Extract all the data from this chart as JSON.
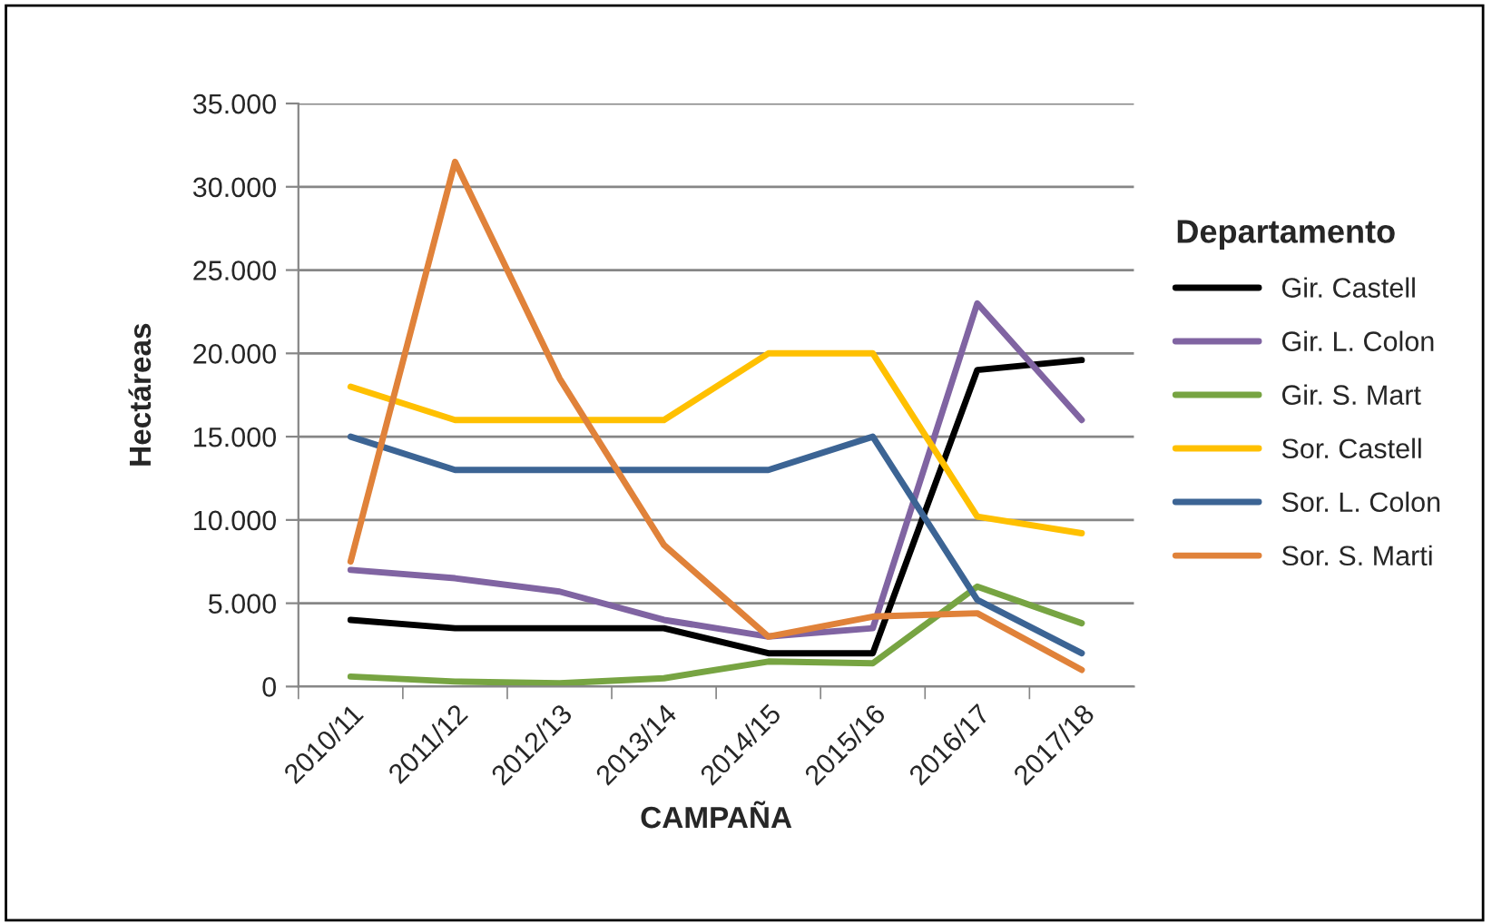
{
  "chart_data": {
    "type": "line",
    "xlabel": "CAMPAÑA",
    "ylabel": "Hectáreas",
    "legend_title": "Departamento",
    "categories": [
      "2010/11",
      "2011/12",
      "2012/13",
      "2013/14",
      "2014/15",
      "2015/16",
      "2016/17",
      "2017/18"
    ],
    "series": [
      {
        "name": "Gir. Castell",
        "color": "#000000",
        "values": [
          4000,
          3500,
          3500,
          3500,
          2000,
          2000,
          19000,
          19600
        ]
      },
      {
        "name": "Gir. L. Colon",
        "color": "#8064a2",
        "values": [
          7000,
          6500,
          5700,
          4000,
          3000,
          3500,
          23000,
          16000
        ]
      },
      {
        "name": "Gir. S. Mart",
        "color": "#77a442",
        "values": [
          600,
          300,
          200,
          500,
          1500,
          1400,
          6000,
          3800
        ]
      },
      {
        "name": "Sor. Castell",
        "color": "#ffc000",
        "values": [
          18000,
          16000,
          16000,
          16000,
          20000,
          20000,
          10200,
          9200
        ]
      },
      {
        "name": "Sor. L. Colon",
        "color": "#3c6494",
        "values": [
          15000,
          13000,
          13000,
          13000,
          13000,
          15000,
          5200,
          2000
        ]
      },
      {
        "name": "Sor. S. Marti",
        "color": "#e0823a",
        "values": [
          7500,
          31500,
          18500,
          8500,
          3000,
          4200,
          4400,
          1000
        ]
      }
    ],
    "ylim": [
      0,
      35000
    ],
    "yticks": [
      {
        "value": 0,
        "label": "0"
      },
      {
        "value": 5000,
        "label": "5.000"
      },
      {
        "value": 10000,
        "label": "10.000"
      },
      {
        "value": 15000,
        "label": "15.000"
      },
      {
        "value": 20000,
        "label": "20.000"
      },
      {
        "value": 25000,
        "label": "25.000"
      },
      {
        "value": 30000,
        "label": "30.000"
      },
      {
        "value": 35000,
        "label": "35.000"
      }
    ],
    "grid": "y",
    "legend": "right",
    "marker": "none",
    "line_style": "solid"
  }
}
